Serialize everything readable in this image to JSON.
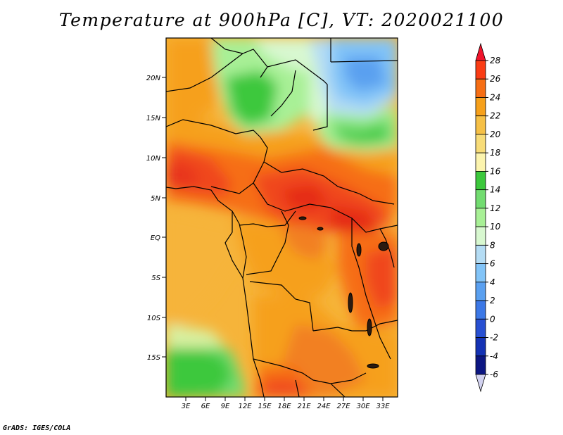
{
  "map": {
    "title": "Temperature at 900hPa [C], VT: 2020021100",
    "variable": "Temperature at 900hPa",
    "units": "C",
    "valid_time": "2020021100",
    "footer": "GrADS: IGES/COLA",
    "lat_labels": [
      "20N",
      "15N",
      "10N",
      "5N",
      "EQ",
      "5S",
      "10S",
      "15S"
    ],
    "lon_labels": [
      "3E",
      "6E",
      "9E",
      "12E",
      "15E",
      "18E",
      "21E",
      "24E",
      "27E",
      "30E",
      "33E"
    ],
    "colorbar": {
      "labels": [
        "28",
        "26",
        "24",
        "22",
        "20",
        "18",
        "16",
        "14",
        "12",
        "10",
        "8",
        "6",
        "4",
        "2",
        "0",
        "-2",
        "-4",
        "-6"
      ],
      "colors": [
        "#f0142c",
        "#fa3c14",
        "#f66e14",
        "#f6a01a",
        "#f6c046",
        "#f8dc78",
        "#fcf4ae",
        "#3cc83c",
        "#72dc70",
        "#a8f096",
        "#d8f8d0",
        "#b4dcf4",
        "#82c4f8",
        "#5aa0f0",
        "#3c78e6",
        "#2850d2",
        "#1432b4",
        "#0c1682",
        "#d2d2f0"
      ]
    }
  }
}
